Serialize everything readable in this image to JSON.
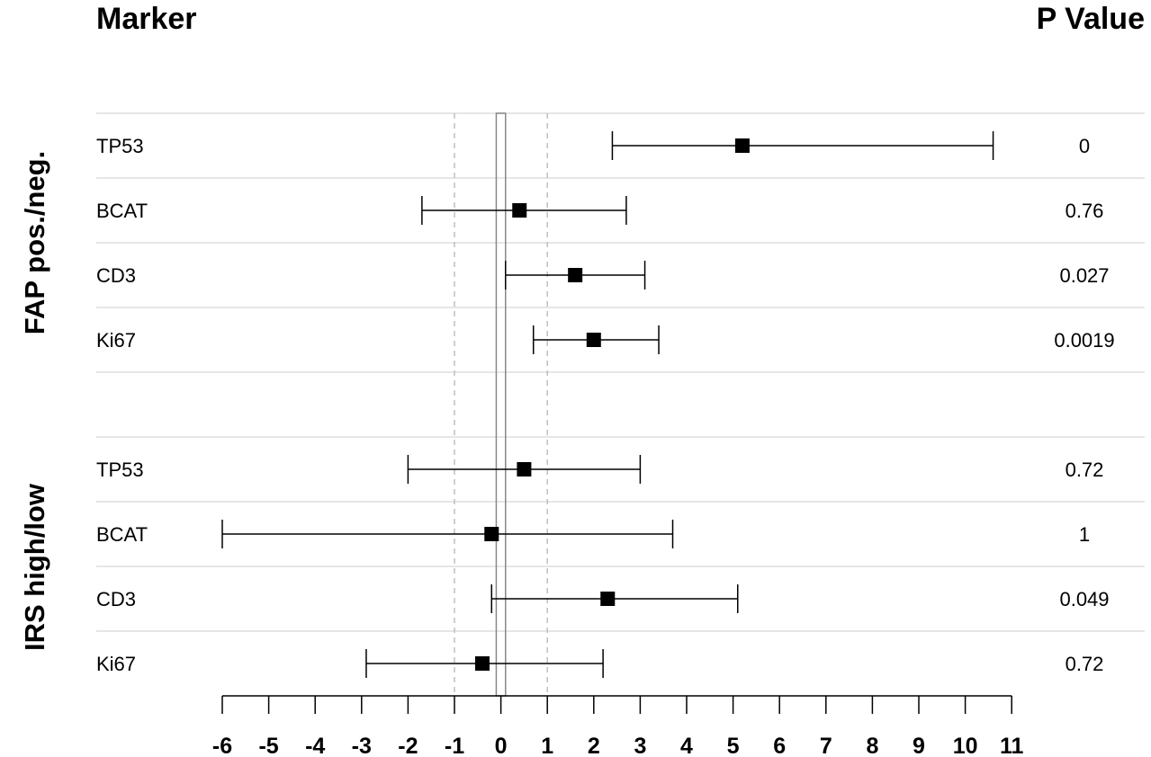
{
  "header": {
    "marker_title": "Marker",
    "pvalue_title": "P Value"
  },
  "groups": [
    {
      "label": "FAP pos./neg."
    },
    {
      "label": "IRS high/low"
    }
  ],
  "colors": {
    "marker": "#000000",
    "whisker": "#000000",
    "separator": "#e6e6e6",
    "reference": "#bfbfbf",
    "zero_box": "#888888"
  },
  "chart_data": {
    "type": "forest",
    "x_ticks": [
      -6,
      -5,
      -4,
      -3,
      -2,
      -1,
      0,
      1,
      2,
      3,
      4,
      5,
      6,
      7,
      8,
      9,
      10,
      11
    ],
    "xlim": [
      -6,
      11
    ],
    "reference_lines": [
      -1,
      1
    ],
    "zero_band": [
      -0.1,
      0.1
    ],
    "rows": [
      {
        "group": "FAP pos./neg.",
        "marker": "TP53",
        "estimate": 5.2,
        "lower": 2.4,
        "upper": 10.6,
        "p_value": "0"
      },
      {
        "group": "FAP pos./neg.",
        "marker": "BCAT",
        "estimate": 0.4,
        "lower": -1.7,
        "upper": 2.7,
        "p_value": "0.76"
      },
      {
        "group": "FAP pos./neg.",
        "marker": "CD3",
        "estimate": 1.6,
        "lower": 0.1,
        "upper": 3.1,
        "p_value": "0.027"
      },
      {
        "group": "FAP pos./neg.",
        "marker": "Ki67",
        "estimate": 2.0,
        "lower": 0.7,
        "upper": 3.4,
        "p_value": "0.0019"
      },
      {
        "group": "IRS high/low",
        "marker": "TP53",
        "estimate": 0.5,
        "lower": -2.0,
        "upper": 3.0,
        "p_value": "0.72"
      },
      {
        "group": "IRS high/low",
        "marker": "BCAT",
        "estimate": -0.2,
        "lower": -6.0,
        "upper": 3.7,
        "p_value": "1"
      },
      {
        "group": "IRS high/low",
        "marker": "CD3",
        "estimate": 2.3,
        "lower": -0.2,
        "upper": 5.1,
        "p_value": "0.049"
      },
      {
        "group": "IRS high/low",
        "marker": "Ki67",
        "estimate": -0.4,
        "lower": -2.9,
        "upper": 2.2,
        "p_value": "0.72"
      }
    ]
  }
}
